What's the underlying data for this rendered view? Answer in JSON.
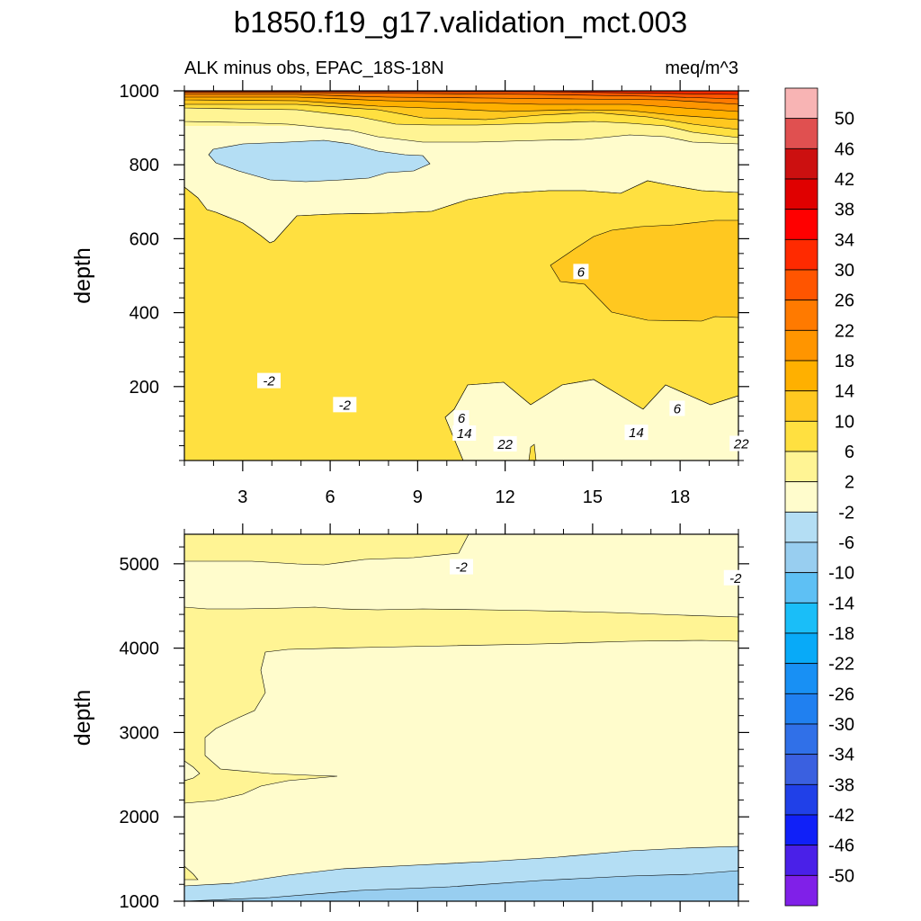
{
  "title": "b1850.f19_g17.validation_mct.003",
  "subtitle_left": "ALK minus obs, EPAC_18S-18N",
  "subtitle_right": "meq/m^3",
  "chart_data": [
    {
      "type": "contour",
      "panel": "upper",
      "ylabel": "depth",
      "xlabel": "",
      "xlim": [
        1,
        20
      ],
      "ylim": [
        1000,
        0
      ],
      "xticks": [
        "3",
        "6",
        "9",
        "12",
        "15",
        "18"
      ],
      "yticks": [
        "200",
        "400",
        "600",
        "800",
        "1000"
      ],
      "ytick_values": [
        200,
        400,
        600,
        800,
        1000
      ],
      "contour_labels": [
        {
          "text": "-2",
          "x": 6.5,
          "y": 150
        },
        {
          "text": "-2",
          "x": 3.9,
          "y": 215
        },
        {
          "text": "14",
          "x": 10.6,
          "y": 73
        },
        {
          "text": "22",
          "x": 12.0,
          "y": 44
        },
        {
          "text": "6",
          "x": 10.5,
          "y": 114
        },
        {
          "text": "14",
          "x": 16.5,
          "y": 75
        },
        {
          "text": "22",
          "x": 20.1,
          "y": 45
        },
        {
          "text": "6",
          "x": 17.9,
          "y": 140
        },
        {
          "text": "6",
          "x": 14.6,
          "y": 510
        }
      ]
    },
    {
      "type": "contour",
      "panel": "lower",
      "ylabel": "depth",
      "xlabel": "",
      "xlim": [
        1,
        20
      ],
      "ylim": [
        5350,
        1000
      ],
      "xticks": [
        "3",
        "6",
        "9",
        "12",
        "15",
        "18"
      ],
      "yticks": [
        "1000",
        "2000",
        "3000",
        "4000",
        "5000"
      ],
      "ytick_values": [
        1000,
        2000,
        3000,
        4000,
        5000
      ],
      "contour_labels": [
        {
          "text": "-2",
          "x": 10.5,
          "y": 4960
        },
        {
          "text": "-2",
          "x": 19.9,
          "y": 4830
        }
      ]
    }
  ],
  "colorbar": {
    "levels": [
      "50",
      "46",
      "42",
      "38",
      "34",
      "30",
      "26",
      "22",
      "18",
      "14",
      "10",
      "6",
      "2",
      "-2",
      "-6",
      "-10",
      "-14",
      "-18",
      "-22",
      "-26",
      "-30",
      "-34",
      "-38",
      "-42",
      "-46",
      "-50"
    ],
    "colors": [
      "#f8b4b4",
      "#e05050",
      "#cc1010",
      "#e00000",
      "#ff0000",
      "#ff2a00",
      "#ff5500",
      "#ff7a00",
      "#ff9500",
      "#ffb000",
      "#ffc820",
      "#ffe040",
      "#fff494",
      "#fffccc",
      "#b4def4",
      "#98cef0",
      "#5ec0f4",
      "#1abef8",
      "#08aaf8",
      "#1890f4",
      "#2080f0",
      "#3070e8",
      "#3a60e0",
      "#2040e8",
      "#1020f8",
      "#4a20e8",
      "#8020e8"
    ]
  }
}
